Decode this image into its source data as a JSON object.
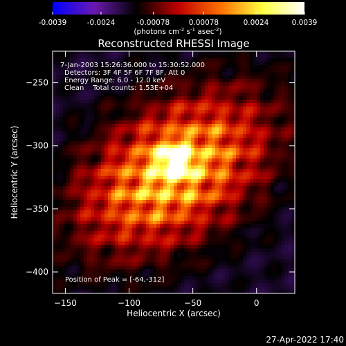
{
  "colorbar": {
    "ticks": [
      "-0.0039",
      "-0.0024",
      "-0.00078",
      "0.00078",
      "0.0024",
      "0.0039"
    ],
    "tick_values": [
      -0.0039,
      -0.0024,
      -0.00078,
      0.00078,
      0.0024,
      0.0039
    ],
    "range": [
      -0.0039,
      0.0039
    ],
    "units_main": "(photons cm",
    "units_exp1": "-2",
    "units_mid": " s",
    "units_exp2": "-1",
    "units_mid2": " asec",
    "units_exp3": "-2",
    "units_close": ")",
    "stops": [
      "#0000ff",
      "#6a1ab0",
      "#000000",
      "#c00000",
      "#ff7000",
      "#ffff40",
      "#ffffff"
    ]
  },
  "chart_data": {
    "type": "heatmap",
    "title": "Reconstructed RHESSI Image",
    "xlabel": "Heliocentric X (arcsec)",
    "ylabel": "Heliocentric Y (arcsec)",
    "xlim": [
      -160,
      30
    ],
    "ylim": [
      -417,
      -225
    ],
    "x_ticks": [
      -150,
      -100,
      -50,
      0
    ],
    "x_tick_labels": [
      "−150",
      "−100",
      "−50",
      "0"
    ],
    "y_ticks": [
      -250,
      -300,
      -350,
      -400
    ],
    "y_tick_labels": [
      "−250",
      "−300",
      "−350",
      "−400"
    ],
    "annotations": [
      "7-Jan-2003 15:26:36.000 to 15:30:52.000",
      "Detectors: 3F 4F 5F 6F 7F 8F, Att 0",
      "Energy Range: 6.0 - 12.0 keV",
      "Clean    Total counts: 1.53E+04"
    ],
    "peak_label": "Position of Peak = [-64,-312]",
    "peak": [
      -64,
      -312
    ]
  },
  "timestamp": "27-Apr-2022 17:40"
}
